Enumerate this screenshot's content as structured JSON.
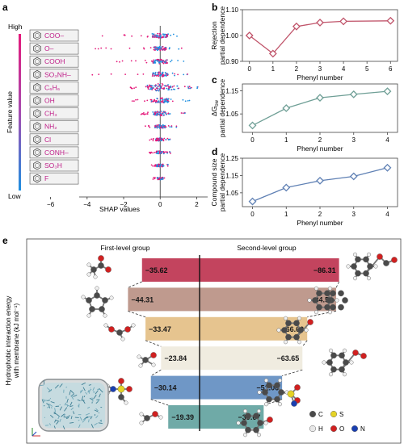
{
  "panels": {
    "a": {
      "label": "a",
      "high": "High",
      "low": "Low",
      "colorbar_label": "Feature value"
    },
    "b": {
      "label": "b"
    },
    "c": {
      "label": "c"
    },
    "d": {
      "label": "d"
    },
    "e": {
      "label": "e"
    }
  },
  "colors": {
    "high": "#e4197a",
    "low": "#1d8fe0",
    "panel_b": "#c0546a",
    "panel_c": "#6f9f96",
    "panel_d": "#5f80b4"
  },
  "chart_data": [
    {
      "id": "a",
      "type": "scatter",
      "xlabel": "SHAP values",
      "xlim": [
        -7,
        2.6
      ],
      "xticks": [
        -6,
        -4,
        -2,
        0,
        2
      ],
      "features": [
        {
          "label": "COO–",
          "spread": [
            -4.3,
            1.4
          ],
          "bulk": 0.55
        },
        {
          "label": "O–",
          "spread": [
            -3.6,
            1.2
          ],
          "bulk": 0.45
        },
        {
          "label": "COOH",
          "spread": [
            -2.5,
            1.3
          ],
          "bulk": 0.5
        },
        {
          "label": "SO₃NH–",
          "spread": [
            -4.0,
            1.6
          ],
          "bulk": 0.55
        },
        {
          "label": "C₆H₆",
          "spread": [
            -2.0,
            2.2
          ],
          "bulk": 1.0
        },
        {
          "label": "OH",
          "spread": [
            -1.6,
            1.8
          ],
          "bulk": 0.6
        },
        {
          "label": "CH₃",
          "spread": [
            -1.3,
            1.6
          ],
          "bulk": 0.5
        },
        {
          "label": "NH₂",
          "spread": [
            -0.9,
            0.9
          ],
          "bulk": 0.35
        },
        {
          "label": "Cl",
          "spread": [
            -0.6,
            0.6
          ],
          "bulk": 0.3
        },
        {
          "label": "CONH–",
          "spread": [
            -0.6,
            0.6
          ],
          "bulk": 0.28
        },
        {
          "label": "SO₃H",
          "spread": [
            -0.5,
            0.5
          ],
          "bulk": 0.25
        },
        {
          "label": "F",
          "spread": [
            -0.4,
            0.4
          ],
          "bulk": 0.2
        }
      ]
    },
    {
      "id": "b",
      "type": "line",
      "xlabel": "Phenyl number",
      "ylabel": "Rejection partial dependence",
      "x": [
        0,
        1,
        2,
        3,
        4,
        6
      ],
      "values": [
        1.0,
        0.93,
        1.035,
        1.05,
        1.055,
        1.057
      ],
      "xlim": [
        -0.3,
        6.3
      ],
      "ylim": [
        0.9,
        1.1
      ],
      "xticks": [
        0,
        1,
        2,
        3,
        4,
        5,
        6
      ],
      "yticks": [
        0.9,
        1.0,
        1.1
      ],
      "ytick_labels": [
        "0.90",
        "1.00",
        "1.10"
      ]
    },
    {
      "id": "c",
      "type": "line",
      "xlabel": "Phenyl number",
      "ylabel": "ΔG partial dependence",
      "ylabel_main": "ΔG",
      "ylabel_sub": "ow",
      "ylabel_line2": "partial dependence",
      "x": [
        0,
        1,
        2,
        3,
        4
      ],
      "values": [
        1.0,
        1.075,
        1.12,
        1.135,
        1.148
      ],
      "xlim": [
        -0.3,
        4.3
      ],
      "ylim": [
        0.97,
        1.18
      ],
      "xticks": [
        0,
        1,
        2,
        3,
        4
      ],
      "yticks": [
        1.05,
        1.15
      ],
      "ytick_labels": [
        "1.05",
        "1.15"
      ]
    },
    {
      "id": "d",
      "type": "line",
      "xlabel": "Phenyl number",
      "ylabel": "Compound size partial dependence",
      "x": [
        0,
        1,
        2,
        3,
        4
      ],
      "values": [
        1.0,
        1.08,
        1.12,
        1.145,
        1.195
      ],
      "xlim": [
        -0.3,
        4.3
      ],
      "ylim": [
        0.97,
        1.25
      ],
      "xticks": [
        0,
        1,
        2,
        3,
        4
      ],
      "yticks": [
        1.05,
        1.15,
        1.25
      ],
      "ytick_labels": [
        "1.05",
        "1.15",
        "1.25"
      ]
    },
    {
      "id": "e",
      "type": "bar",
      "ylabel": "Hydrophobic interaction energy with membrane (kJ mol⁻¹)",
      "group_labels": [
        "First-level group",
        "Second-level group"
      ],
      "rows": [
        {
          "left": -35.62,
          "right": -86.31,
          "color": "#c3445e",
          "dark_text": false
        },
        {
          "left": -44.31,
          "right": -84.51,
          "color": "#bf9a8e",
          "dark_text": true
        },
        {
          "left": -33.47,
          "right": -66.6,
          "color": "#e6c48f",
          "dark_text": true
        },
        {
          "left": -23.84,
          "right": -63.65,
          "color": "#f0ece0",
          "dark_text": true
        },
        {
          "left": -30.14,
          "right": -51.06,
          "color": "#6f97c6",
          "dark_text": true
        },
        {
          "left": -19.39,
          "right": -39.67,
          "color": "#6faaa7",
          "dark_text": true
        }
      ],
      "legend": [
        {
          "label": "C",
          "color": "#4a4a4a"
        },
        {
          "label": "S",
          "color": "#e5d326"
        },
        {
          "label": "H",
          "color": "#e8e8e8"
        },
        {
          "label": "O",
          "color": "#d02020"
        },
        {
          "label": "N",
          "color": "#1a3fb0"
        }
      ]
    }
  ]
}
